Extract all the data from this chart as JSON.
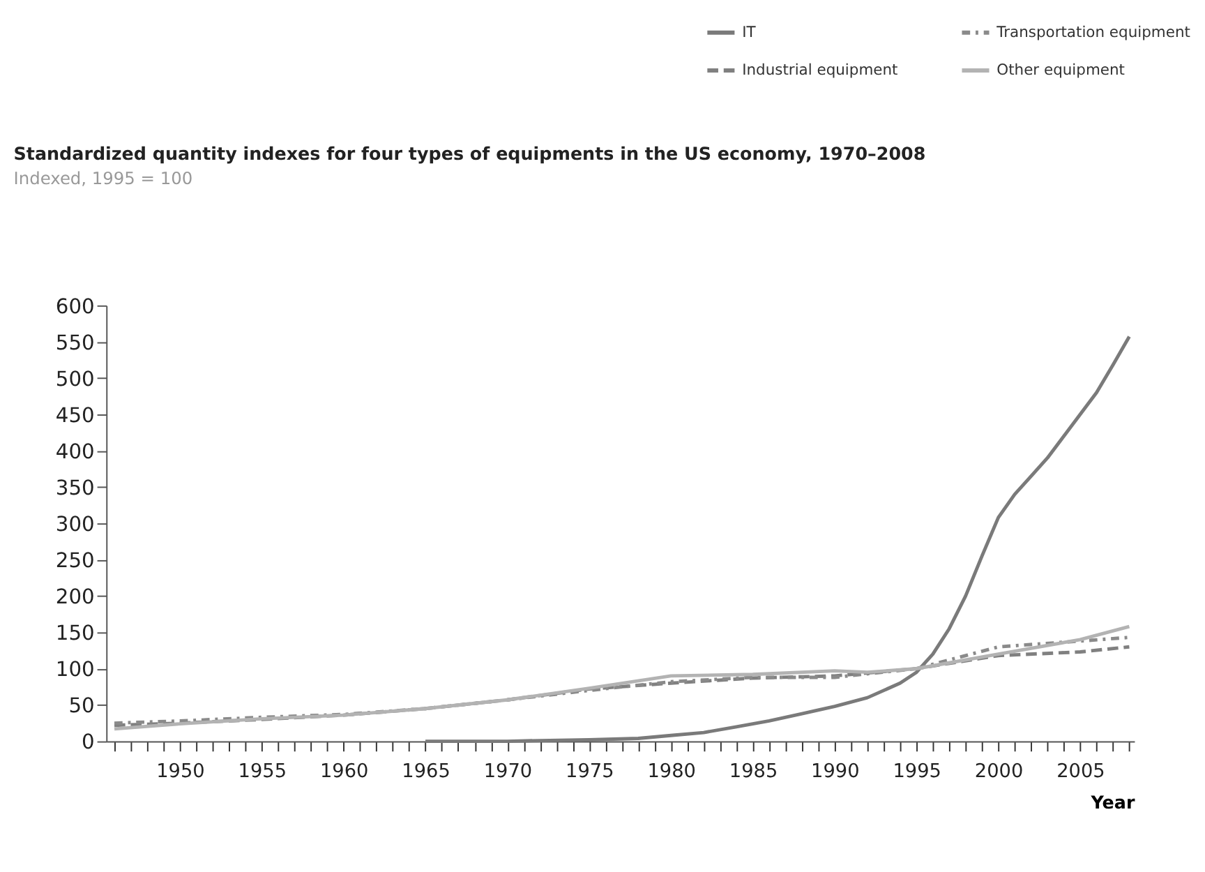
{
  "chart_data": {
    "type": "line",
    "title": "Standardized quantity indexes for four types of equipments in the US economy, 1970–2008",
    "subtitle": "Indexed, 1995 = 100",
    "xlabel": "Year",
    "xlim": [
      1945.5,
      2008.3
    ],
    "xticks": [
      {
        "value": 1946,
        "label": null
      },
      {
        "value": 1947,
        "label": null
      },
      {
        "value": 1948,
        "label": null
      },
      {
        "value": 1949,
        "label": null
      },
      1950,
      {
        "value": 1951,
        "label": null
      },
      {
        "value": 1952,
        "label": null
      },
      {
        "value": 1953,
        "label": null
      },
      {
        "value": 1954,
        "label": null
      },
      1955,
      {
        "value": 1956,
        "label": null
      },
      {
        "value": 1957,
        "label": null
      },
      {
        "value": 1958,
        "label": null
      },
      {
        "value": 1959,
        "label": null
      },
      1960,
      {
        "value": 1961,
        "label": null
      },
      {
        "value": 1962,
        "label": null
      },
      {
        "value": 1963,
        "label": null
      },
      {
        "value": 1964,
        "label": null
      },
      1965,
      {
        "value": 1966,
        "label": null
      },
      {
        "value": 1967,
        "label": null
      },
      {
        "value": 1968,
        "label": null
      },
      {
        "value": 1969,
        "label": null
      },
      1970,
      {
        "value": 1971,
        "label": null
      },
      {
        "value": 1972,
        "label": null
      },
      {
        "value": 1973,
        "label": null
      },
      {
        "value": 1974,
        "label": null
      },
      1975,
      {
        "value": 1976,
        "label": null
      },
      {
        "value": 1977,
        "label": null
      },
      {
        "value": 1978,
        "label": null
      },
      {
        "value": 1979,
        "label": null
      },
      1980,
      {
        "value": 1981,
        "label": null
      },
      {
        "value": 1982,
        "label": null
      },
      {
        "value": 1983,
        "label": null
      },
      {
        "value": 1984,
        "label": null
      },
      1985,
      {
        "value": 1986,
        "label": null
      },
      {
        "value": 1987,
        "label": null
      },
      {
        "value": 1988,
        "label": null
      },
      {
        "value": 1989,
        "label": null
      },
      1990,
      {
        "value": 1991,
        "label": null
      },
      {
        "value": 1992,
        "label": null
      },
      {
        "value": 1993,
        "label": null
      },
      {
        "value": 1994,
        "label": null
      },
      1995,
      {
        "value": 1996,
        "label": null
      },
      {
        "value": 1997,
        "label": null
      },
      {
        "value": 1998,
        "label": null
      },
      {
        "value": 1999,
        "label": null
      },
      2000,
      {
        "value": 2001,
        "label": null
      },
      {
        "value": 2002,
        "label": null
      },
      {
        "value": 2003,
        "label": null
      },
      {
        "value": 2004,
        "label": null
      },
      2005,
      {
        "value": 2006,
        "label": null
      },
      {
        "value": 2007,
        "label": null
      },
      {
        "value": 2008,
        "label": null
      }
    ],
    "ylim": [
      0,
      600
    ],
    "yticks": [
      0,
      50,
      100,
      150,
      200,
      250,
      300,
      350,
      400,
      450,
      500,
      550,
      600
    ],
    "grid": false,
    "legend": "top right",
    "series": [
      {
        "name": "IT",
        "color": "#7a7a7a",
        "line_style": "solid",
        "x": [
          1965,
          1970,
          1972,
          1975,
          1978,
          1980,
          1982,
          1984,
          1986,
          1988,
          1990,
          1992,
          1994,
          1995,
          1996,
          1997,
          1998,
          1999,
          2000,
          2001,
          2002,
          2003,
          2004,
          2005,
          2006,
          2007,
          2008
        ],
        "values": [
          0,
          0,
          1,
          2,
          4,
          8,
          12,
          20,
          28,
          38,
          48,
          60,
          80,
          95,
          120,
          155,
          200,
          255,
          308,
          340,
          365,
          390,
          420,
          450,
          480,
          518,
          557
        ]
      },
      {
        "name": "Industrial equipment",
        "color": "#808080",
        "line_style": "dashed",
        "x": [
          1946,
          1950,
          1955,
          1960,
          1965,
          1970,
          1975,
          1980,
          1985,
          1990,
          1995,
          2000,
          2005,
          2008
        ],
        "values": [
          22,
          25,
          30,
          36,
          45,
          57,
          72,
          80,
          87,
          90,
          100,
          118,
          123,
          130
        ]
      },
      {
        "name": "Transportation equipment",
        "color": "#8a8a8a",
        "line_style": "dotted",
        "x": [
          1946,
          1950,
          1955,
          1960,
          1965,
          1970,
          1975,
          1980,
          1985,
          1990,
          1995,
          2000,
          2005,
          2008
        ],
        "values": [
          25,
          28,
          33,
          37,
          45,
          57,
          70,
          82,
          88,
          88,
          100,
          130,
          138,
          143
        ]
      },
      {
        "name": "Other equipment",
        "color": "#b3b3b3",
        "line_style": "solid",
        "x": [
          1946,
          1950,
          1955,
          1960,
          1965,
          1970,
          1975,
          1980,
          1985,
          1990,
          1992,
          1995,
          2000,
          2005,
          2008
        ],
        "values": [
          17,
          24,
          31,
          36,
          45,
          57,
          73,
          90,
          92,
          97,
          95,
          100,
          120,
          140,
          158
        ]
      }
    ]
  }
}
